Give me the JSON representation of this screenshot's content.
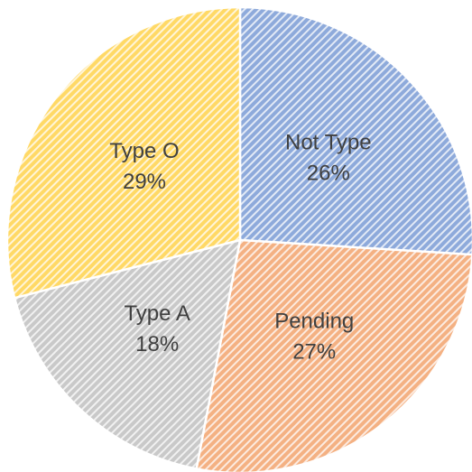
{
  "chart_data": {
    "type": "pie",
    "categories": [
      "Not Type",
      "Pending",
      "Type A",
      "Type O"
    ],
    "values": [
      26,
      27,
      18,
      29
    ],
    "value_labels": [
      "26%",
      "27%",
      "18%",
      "29%"
    ],
    "colors": [
      "#8eaadb",
      "#f4b183",
      "#c9c9c9",
      "#ffd966"
    ],
    "hatch": true
  }
}
